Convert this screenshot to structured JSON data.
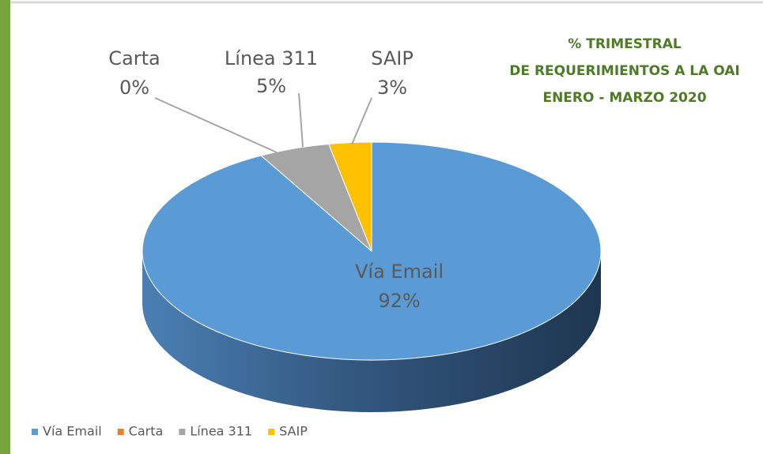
{
  "chart_data": {
    "type": "pie",
    "title": [
      "% TRIMESTRAL",
      "DE REQUERIMIENTOS A LA OAI",
      "ENERO - MARZO 2020"
    ],
    "categories": [
      "Vía Email",
      "Carta",
      "Línea 311",
      "SAIP"
    ],
    "values": [
      92,
      0,
      5,
      3
    ],
    "value_labels": [
      "92%",
      "0%",
      "5%",
      "3%"
    ],
    "colors": [
      "#5b9bd5",
      "#ed7d31",
      "#a5a5a5",
      "#ffc000"
    ],
    "legend": "bottom-left"
  }
}
